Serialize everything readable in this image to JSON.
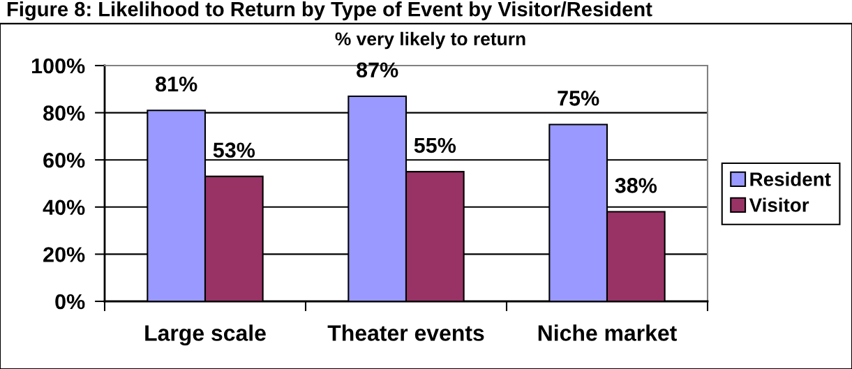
{
  "chart_data": {
    "type": "bar",
    "title": "Figure 8: Likelihood to Return by Type of Event by Visitor/Resident",
    "subtitle": "% very likely to return",
    "categories": [
      "Large scale",
      "Theater events",
      "Niche market"
    ],
    "series": [
      {
        "name": "Resident",
        "color": "#9999ff",
        "values": [
          81,
          87,
          75
        ],
        "value_labels": [
          "81%",
          "87%",
          "75%"
        ]
      },
      {
        "name": "Visitor",
        "color": "#993366",
        "values": [
          53,
          55,
          38
        ],
        "value_labels": [
          "53%",
          "55%",
          "38%"
        ]
      }
    ],
    "ylim": [
      0,
      100
    ],
    "yticks": [
      {
        "value": 0,
        "label": "0%"
      },
      {
        "value": 20,
        "label": "20%"
      },
      {
        "value": 40,
        "label": "40%"
      },
      {
        "value": 60,
        "label": "60%"
      },
      {
        "value": 80,
        "label": "80%"
      },
      {
        "value": 100,
        "label": "100%"
      }
    ],
    "grid": "y",
    "legend": "right"
  }
}
